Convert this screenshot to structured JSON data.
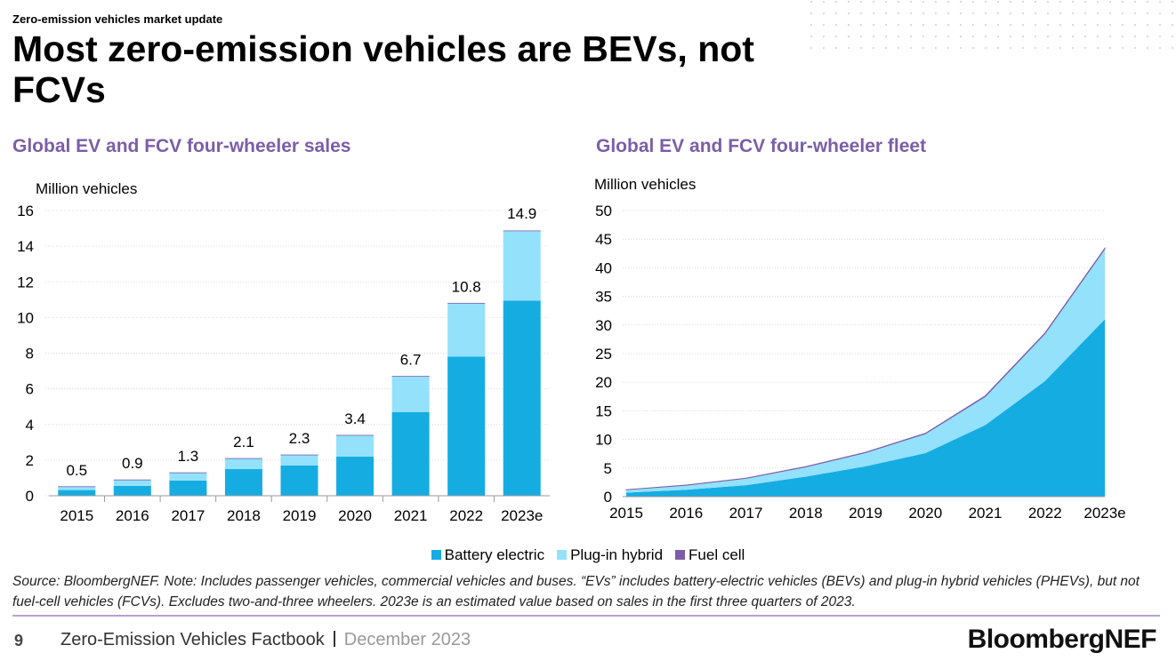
{
  "header": {
    "kicker": "Zero-emission vehicles market update",
    "title": "Most zero-emission vehicles are BEVs, not FCVs"
  },
  "chart_data": [
    {
      "type": "bar",
      "stacked": true,
      "title": "Global EV and FCV four-wheeler sales",
      "y_label": "Million vehicles",
      "categories": [
        "2015",
        "2016",
        "2017",
        "2018",
        "2019",
        "2020",
        "2021",
        "2022",
        "2023e"
      ],
      "series": [
        {
          "name": "Battery electric",
          "color": "#15ace2",
          "values": [
            0.32,
            0.55,
            0.85,
            1.5,
            1.7,
            2.2,
            4.7,
            7.8,
            10.95
          ]
        },
        {
          "name": "Plug-in hybrid",
          "color": "#93e1fb",
          "values": [
            0.2,
            0.35,
            0.45,
            0.6,
            0.6,
            1.2,
            2.0,
            3.0,
            3.9
          ]
        },
        {
          "name": "Fuel cell",
          "color": "#7b5ea7",
          "values": [
            0.01,
            0.01,
            0.01,
            0.01,
            0.01,
            0.01,
            0.02,
            0.02,
            0.03
          ]
        }
      ],
      "totals": [
        0.5,
        0.9,
        1.3,
        2.1,
        2.3,
        3.4,
        6.7,
        10.8,
        14.9
      ],
      "ylim": [
        0,
        16
      ],
      "yticks": [
        0,
        2,
        4,
        6,
        8,
        10,
        12,
        14,
        16
      ],
      "grid": true
    },
    {
      "type": "area",
      "stacked": true,
      "title": "Global EV and FCV four-wheeler fleet",
      "y_label": "Million vehicles",
      "categories": [
        "2015",
        "2016",
        "2017",
        "2018",
        "2019",
        "2020",
        "2021",
        "2022",
        "2023e"
      ],
      "series": [
        {
          "color": "#15ace2",
          "values": [
            0.7,
            1.2,
            2.0,
            3.5,
            5.3,
            7.6,
            12.5,
            20.2,
            31.0
          ]
        },
        {
          "color": "#93e1fb",
          "values": [
            0.5,
            0.8,
            1.2,
            1.7,
            2.4,
            3.4,
            5.0,
            8.3,
            12.3
          ]
        },
        {
          "color": "#7b5ea7",
          "values": [
            0.01,
            0.02,
            0.03,
            0.04,
            0.05,
            0.06,
            0.1,
            0.1,
            0.1
          ]
        }
      ],
      "ylim": [
        0,
        50
      ],
      "yticks": [
        0,
        5,
        10,
        15,
        20,
        25,
        30,
        35,
        40,
        45,
        50
      ],
      "grid": true
    }
  ],
  "source": "Source: BloombergNEF. Note: Includes passenger vehicles, commercial vehicles and buses. “EVs” includes battery-electric vehicles (BEVs) and plug-in hybrid vehicles (PHEVs), but not fuel-cell vehicles (FCVs). Excludes two-and-three wheelers. 2023e is an estimated value based on sales in the first three quarters of 2023.",
  "footer": {
    "page": "9",
    "publication": "Zero-Emission Vehicles Factbook",
    "date": "December 2023",
    "brand": "BloombergNEF"
  }
}
